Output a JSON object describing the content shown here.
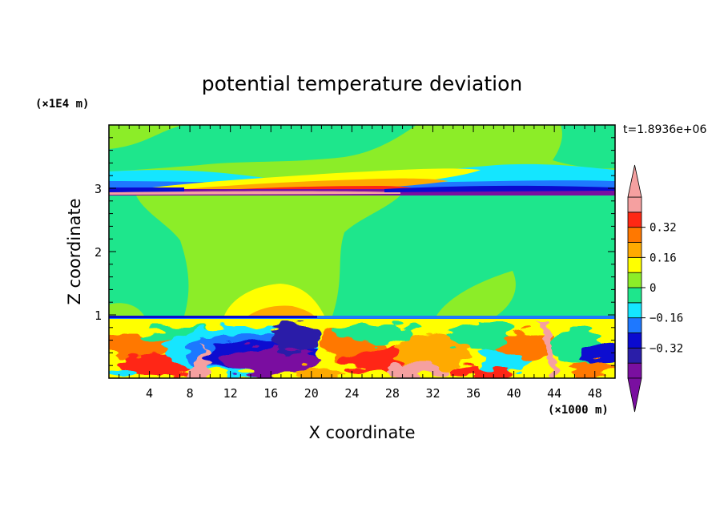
{
  "chart_data": {
    "type": "heatmap",
    "title": "potential temperature deviation",
    "time_label": "t=1.8936e+06",
    "xlabel": "X coordinate",
    "ylabel": "Z coordinate",
    "x_unit": "(×1000 m)",
    "y_unit": "(×1E4 m)",
    "xlim": [
      0,
      50
    ],
    "ylim": [
      0,
      4
    ],
    "x_ticks": [
      "4",
      "8",
      "12",
      "16",
      "20",
      "24",
      "28",
      "32",
      "36",
      "40",
      "44",
      "48"
    ],
    "x_tick_values": [
      4,
      8,
      12,
      16,
      20,
      24,
      28,
      32,
      36,
      40,
      44,
      48
    ],
    "y_ticks": [
      "1",
      "2",
      "3"
    ],
    "y_tick_values": [
      1,
      2,
      3
    ],
    "colorbar": {
      "levels": [
        -0.48,
        -0.4,
        -0.32,
        -0.24,
        -0.16,
        -0.08,
        0,
        0.08,
        0.16,
        0.24,
        0.32,
        0.4,
        0.48
      ],
      "colors": [
        "#7a0fa0",
        "#2a1ea8",
        "#0a0ad0",
        "#1e78ff",
        "#14e6ff",
        "#1ee68c",
        "#8ced28",
        "#ffff00",
        "#ffaa00",
        "#ff7800",
        "#ff2814",
        "#f5a0a0"
      ],
      "tick_labels": [
        "0.32",
        "0.16",
        "0",
        "−0.16",
        "−0.32"
      ],
      "tick_values": [
        0.32,
        0.16,
        0,
        -0.16,
        -0.32
      ],
      "under_color": "#7a0fa0",
      "over_color": "#f5a0a0"
    }
  }
}
